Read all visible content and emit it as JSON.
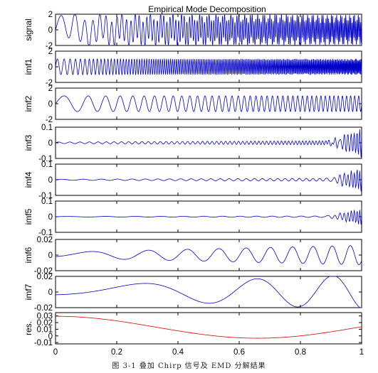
{
  "chart_data": {
    "type": "line",
    "title": "Empirical Mode Decomposition",
    "xlim": [
      0,
      1
    ],
    "xticks": [
      "0",
      "0.2",
      "0.4",
      "0.6",
      "0.8",
      "1"
    ],
    "colors": {
      "signal": "#0000c8",
      "imf": "#0000c8",
      "residual": "#e00000"
    },
    "panels": [
      {
        "name": "signal",
        "ylim": [
          -2,
          2
        ],
        "yticks": [
          "2",
          "0",
          "-2"
        ],
        "yvals": [
          2,
          0,
          -2
        ],
        "series": {
          "model": "chirp",
          "amplitude": 1.6,
          "f0": 12,
          "k": 120,
          "f1": 3,
          "k1": 35,
          "a1": 0.6
        }
      },
      {
        "name": "imf1",
        "ylim": [
          -2,
          2
        ],
        "yticks": [
          "2",
          "0",
          "-2"
        ],
        "yvals": [
          2,
          0,
          -2
        ],
        "series": {
          "model": "chirp",
          "amplitude": 1.0,
          "f0": 40,
          "k": 150
        }
      },
      {
        "name": "imf2",
        "ylim": [
          -2,
          2
        ],
        "yticks": [
          "2",
          "0",
          "-2"
        ],
        "yvals": [
          2,
          0,
          -2
        ],
        "series": {
          "model": "chirp",
          "amplitude": 1.0,
          "f0": 8,
          "k": 35
        }
      },
      {
        "name": "imf3",
        "ylim": [
          -0.1,
          0.1
        ],
        "yticks": [
          "0.1",
          "0",
          "-0.1"
        ],
        "yvals": [
          0.1,
          0,
          -0.1
        ],
        "series": {
          "model": "small",
          "amplitude": 0.012,
          "f0": 25,
          "k": 40,
          "edge": 0.08
        }
      },
      {
        "name": "imf4",
        "ylim": [
          -0.1,
          0.1
        ],
        "yticks": [
          "0.1",
          "0",
          "-0.1"
        ],
        "yvals": [
          0.1,
          0,
          -0.1
        ],
        "series": {
          "model": "small",
          "amplitude": 0.008,
          "f0": 12,
          "k": 20,
          "edge": 0.07
        }
      },
      {
        "name": "imf5",
        "ylim": [
          -0.1,
          0.1
        ],
        "yticks": [
          "0.1",
          "0",
          "-0.1"
        ],
        "yvals": [
          0.1,
          0,
          -0.1
        ],
        "series": {
          "model": "small",
          "amplitude": 0.004,
          "f0": 6,
          "k": 10,
          "edge": 0.05
        }
      },
      {
        "name": "imf6",
        "ylim": [
          -0.02,
          0.02
        ],
        "yticks": [
          "0.02",
          "0",
          "-0.02"
        ],
        "yvals": [
          0.02,
          0,
          -0.02
        ],
        "series": {
          "model": "slow",
          "amplitude": 0.01,
          "f0": 2,
          "k": 8
        }
      },
      {
        "name": "imf7",
        "ylim": [
          -0.02,
          0.02
        ],
        "yticks": [
          "0.02",
          "0",
          "-0.02"
        ],
        "yvals": [
          0.02,
          0,
          -0.02
        ],
        "series": {
          "model": "slow",
          "amplitude": 0.018,
          "f0": 0.6,
          "k": 2.2
        }
      },
      {
        "name": "res.",
        "ylim": [
          -0.012,
          0.035
        ],
        "yticks": [
          "0.03",
          "0.02",
          "0.01",
          "0",
          "-0.01"
        ],
        "yvals": [
          0.03,
          0.02,
          0.01,
          0,
          -0.01
        ],
        "series": {
          "model": "residual"
        }
      }
    ]
  },
  "caption": "图 3-1  叠加 Chirp 信号及 EMD 分解结果"
}
